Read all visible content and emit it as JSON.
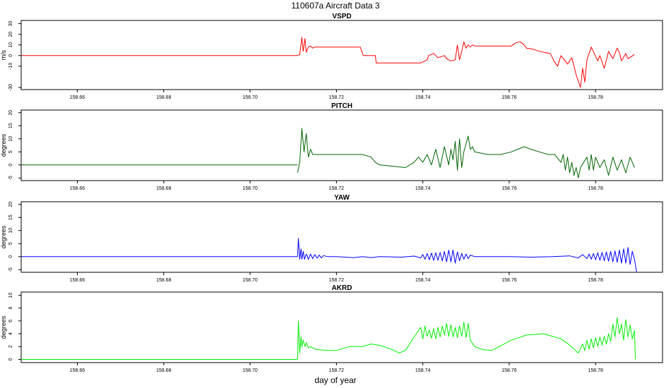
{
  "page": {
    "title": "110607a   Aircraft Data 3",
    "xlabel": "day of year"
  },
  "chart_data": [
    {
      "type": "line",
      "title": "VSPD",
      "xlabel": "",
      "ylabel": "m/s",
      "xlim": [
        158.647,
        158.7955
      ],
      "ylim": [
        -32,
        33
      ],
      "xticks": [
        "158.66",
        "158.68",
        "158.70",
        "158.72",
        "158.74",
        "158.76",
        "158.78"
      ],
      "yticks": [
        "-30",
        "-10",
        "0",
        "10",
        "20",
        "30"
      ],
      "color": "#ff0000",
      "series": [
        {
          "x": [
            158.711,
            158.7115,
            158.712,
            158.7123,
            158.7127,
            158.713,
            158.7135,
            158.714,
            158.7145,
            158.715,
            158.718,
            158.722,
            158.7255,
            158.7262,
            158.729,
            158.7292,
            158.733,
            158.737,
            158.7395,
            158.741,
            158.7413,
            158.7425,
            158.7435,
            158.745,
            158.7455,
            158.7465,
            158.7475,
            158.748,
            158.7485,
            158.749,
            158.7495,
            158.75,
            158.7505,
            158.751,
            158.7515,
            158.752,
            158.756,
            158.7605,
            158.7615,
            158.7625,
            158.7635,
            158.764,
            158.7655,
            158.767,
            158.768,
            158.7695,
            158.7705,
            158.7712,
            158.772,
            158.7735,
            158.7745,
            158.7755,
            158.7765,
            158.777,
            158.7775,
            158.778,
            158.779,
            158.7805,
            158.781,
            158.782,
            158.783,
            158.784,
            158.785,
            158.7855,
            158.786,
            158.787,
            158.7875,
            158.789
          ],
          "y": [
            0,
            1,
            17,
            4,
            16,
            3,
            8,
            9,
            7,
            8,
            8,
            8,
            8,
            0,
            0,
            -7,
            -7,
            -7,
            -7,
            -4,
            0,
            2,
            -2,
            0,
            -3,
            -5,
            -4,
            10,
            -4,
            4,
            13,
            7,
            10,
            8,
            10,
            9,
            9,
            9,
            12,
            13,
            10,
            7,
            6,
            4,
            3,
            2,
            -6,
            -10,
            0,
            -8,
            -2,
            -18,
            -30,
            -12,
            -25,
            -4,
            8,
            -5,
            0,
            -12,
            4,
            -3,
            7,
            3,
            -5,
            2,
            -3,
            1
          ]
        }
      ]
    },
    {
      "type": "line",
      "title": "PITCH",
      "xlabel": "",
      "ylabel": "degrees",
      "xlim": [
        158.647,
        158.7955
      ],
      "ylim": [
        -6,
        21
      ],
      "xticks": [
        "158.66",
        "158.68",
        "158.70",
        "158.72",
        "158.74",
        "158.76",
        "158.78"
      ],
      "yticks": [
        "-5",
        "0",
        "5",
        "10",
        "15",
        "20"
      ],
      "color": "#006400",
      "series": [
        {
          "x": [
            158.711,
            158.7115,
            158.712,
            158.7125,
            158.713,
            158.7135,
            158.714,
            158.7145,
            158.716,
            158.72,
            158.724,
            158.726,
            158.728,
            158.729,
            158.73,
            158.733,
            158.736,
            158.738,
            158.739,
            158.74,
            158.741,
            158.742,
            158.743,
            158.744,
            158.745,
            158.746,
            158.7465,
            158.747,
            158.7475,
            158.748,
            158.7485,
            158.749,
            158.7495,
            158.75,
            158.7505,
            158.751,
            158.7515,
            158.752,
            158.755,
            158.758,
            158.7605,
            158.762,
            158.7635,
            158.765,
            158.767,
            158.769,
            158.7705,
            158.771,
            158.772,
            158.7725,
            158.773,
            158.7735,
            158.774,
            158.7745,
            158.775,
            158.7755,
            158.776,
            158.7765,
            158.778,
            158.7785,
            158.779,
            158.7795,
            158.78,
            158.781,
            158.782,
            158.783,
            158.784,
            158.785,
            158.786,
            158.787,
            158.788,
            158.789
          ],
          "y": [
            -3,
            1,
            14,
            5,
            12,
            3,
            6,
            4,
            4,
            4,
            4,
            4,
            3,
            1,
            0,
            -0.5,
            -1,
            1,
            3,
            1,
            4,
            0,
            6,
            -1,
            7,
            0,
            6,
            2,
            9,
            -2,
            10,
            -1,
            5,
            8,
            11,
            6,
            7,
            5,
            4,
            4,
            5,
            6,
            7,
            6,
            5,
            4,
            4,
            3,
            1,
            4,
            -2,
            3,
            -3,
            1,
            -4,
            -1,
            -5,
            -1,
            3,
            -2,
            4,
            -2,
            3,
            -1,
            2,
            -4,
            3,
            -2,
            2,
            -3,
            3,
            -1
          ]
        }
      ]
    },
    {
      "type": "line",
      "title": "YAW",
      "xlabel": "",
      "ylabel": "degrees",
      "xlim": [
        158.647,
        158.7955
      ],
      "ylim": [
        -6,
        21
      ],
      "xticks": [
        "158.66",
        "158.68",
        "158.70",
        "158.72",
        "158.74",
        "158.76",
        "158.78"
      ],
      "yticks": [
        "-5",
        "0",
        "5",
        "10",
        "15",
        "20"
      ],
      "color": "#0000ff",
      "series": [
        {
          "x": [
            158.711,
            158.7112,
            158.7115,
            158.7118,
            158.712,
            158.7123,
            158.7126,
            158.713,
            158.7135,
            158.714,
            158.7145,
            158.715,
            158.7155,
            158.716,
            158.7165,
            158.717,
            158.718,
            158.72,
            158.724,
            158.726,
            158.728,
            158.73,
            158.735,
            158.738,
            158.7395,
            158.74,
            158.7405,
            158.741,
            158.7415,
            158.742,
            158.7425,
            158.743,
            158.7435,
            158.744,
            158.7445,
            158.745,
            158.7455,
            158.746,
            158.7465,
            158.747,
            158.7475,
            158.748,
            158.7485,
            158.749,
            158.7495,
            158.75,
            158.7505,
            158.751,
            158.752,
            158.756,
            158.76,
            158.765,
            158.77,
            158.774,
            158.776,
            158.777,
            158.778,
            158.7785,
            158.779,
            158.7795,
            158.78,
            158.7805,
            158.781,
            158.7815,
            158.782,
            158.7825,
            158.783,
            158.7835,
            158.784,
            158.7845,
            158.785,
            158.7855,
            158.786,
            158.7865,
            158.787,
            158.7875,
            158.788,
            158.7885,
            158.789,
            158.7895
          ],
          "y": [
            0,
            7,
            -1,
            3,
            -1,
            2,
            -1,
            1,
            -1,
            1,
            -0.8,
            0.8,
            -0.6,
            0.6,
            -0.5,
            0.4,
            0,
            0,
            -0.4,
            0,
            -0.4,
            0,
            -0.2,
            0.2,
            -0.5,
            0.8,
            -1,
            1.2,
            -1.2,
            1.4,
            -1.5,
            1.5,
            -1.4,
            1.6,
            -1.6,
            2,
            -2,
            2.5,
            -2,
            2.5,
            -2.5,
            1.8,
            -1.6,
            1.2,
            -1,
            1,
            -0.8,
            0.6,
            0,
            0,
            0,
            -0.2,
            0,
            0.3,
            -0.5,
            0.8,
            -0.8,
            1,
            -1,
            1.2,
            -1.2,
            1.5,
            -1.4,
            1.6,
            -1.6,
            1.8,
            -1.8,
            2,
            -2,
            2.2,
            -2.2,
            2.5,
            -2.5,
            3,
            -2.5,
            3.5,
            -3,
            2,
            -1,
            -6
          ]
        }
      ]
    },
    {
      "type": "line",
      "title": "AKRD",
      "xlabel": "",
      "ylabel": "degrees",
      "xlim": [
        158.647,
        158.7955
      ],
      "ylim": [
        -0.5,
        10.5
      ],
      "xticks": [
        "158.66",
        "158.68",
        "158.70",
        "158.72",
        "158.74",
        "158.76",
        "158.78"
      ],
      "yticks": [
        "0",
        "2",
        "4",
        "6",
        "8",
        "10"
      ],
      "color": "#00ee00",
      "series": [
        {
          "x": [
            158.711,
            158.7112,
            158.7115,
            158.7118,
            158.712,
            158.7123,
            158.7127,
            158.713,
            158.7135,
            158.714,
            158.715,
            158.716,
            158.718,
            158.72,
            158.723,
            158.726,
            158.728,
            158.73,
            158.733,
            158.7345,
            158.736,
            158.7375,
            158.738,
            158.739,
            158.7395,
            158.74,
            158.7405,
            158.741,
            158.7415,
            158.742,
            158.7425,
            158.743,
            158.7435,
            158.744,
            158.7445,
            158.745,
            158.7455,
            158.746,
            158.7465,
            158.747,
            158.7475,
            158.748,
            158.7485,
            158.749,
            158.7495,
            158.75,
            158.7505,
            158.751,
            158.752,
            158.754,
            158.756,
            158.7605,
            158.764,
            158.768,
            158.772,
            158.7735,
            158.775,
            158.776,
            158.777,
            158.7775,
            158.778,
            158.7785,
            158.779,
            158.7795,
            158.78,
            158.7805,
            158.781,
            158.7815,
            158.782,
            158.7825,
            158.783,
            158.7835,
            158.784,
            158.7845,
            158.785,
            158.7855,
            158.786,
            158.7865,
            158.787,
            158.7875,
            158.788,
            158.7885,
            158.789,
            158.7892
          ],
          "y": [
            0,
            6,
            1,
            3.5,
            2,
            3,
            2,
            2.6,
            1.8,
            2,
            1.6,
            1.5,
            1.4,
            1.4,
            2,
            2,
            2.4,
            2.2,
            1.5,
            1,
            1.4,
            3,
            3.5,
            4.5,
            5,
            3.2,
            5.2,
            3.6,
            4.6,
            3.3,
            4.8,
            3.2,
            5,
            3.5,
            5.2,
            3.8,
            5.6,
            3.6,
            5.4,
            3.5,
            5,
            3.4,
            5.2,
            3.6,
            5.8,
            3.4,
            5.6,
            3,
            2,
            1.5,
            1.4,
            3,
            3.8,
            4,
            3.2,
            2.5,
            1.6,
            1,
            2.4,
            1.4,
            3,
            1.6,
            3.2,
            1.8,
            3.4,
            2,
            3.5,
            2.2,
            3.6,
            2.4,
            4,
            2.8,
            5.5,
            3.5,
            6.5,
            4,
            5.5,
            3,
            6.2,
            3.5,
            5.4,
            3.2,
            4.5,
            0
          ]
        }
      ]
    }
  ]
}
